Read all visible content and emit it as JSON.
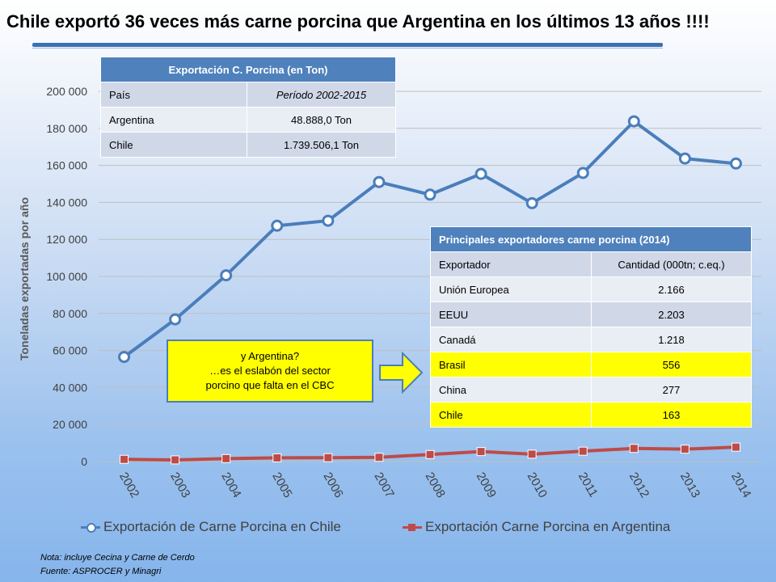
{
  "title": "Chile exportó 36 veces más carne porcina que Argentina en los últimos 13 años !!!!",
  "colors": {
    "chile": "#4a7ebb",
    "argentina": "#be4b48",
    "table_header": "#4f81bd",
    "highlight": "#ffff00"
  },
  "chart_data": {
    "type": "line",
    "title": "",
    "xlabel": "",
    "ylabel": "Toneladas exportadas por año",
    "categories": [
      "2002",
      "2003",
      "2004",
      "2005",
      "2006",
      "2007",
      "2008",
      "2009",
      "2010",
      "2011",
      "2012",
      "2013",
      "2014"
    ],
    "ylim": [
      0,
      200000
    ],
    "yticks": [
      0,
      20000,
      40000,
      60000,
      80000,
      100000,
      120000,
      140000,
      160000,
      180000,
      200000
    ],
    "ytick_labels": [
      "0",
      "20 000",
      "40 000",
      "60 000",
      "80 000",
      "100 000",
      "120 000",
      "140 000",
      "160 000",
      "180 000",
      "200 000"
    ],
    "grid": true,
    "legend_position": "bottom",
    "series": [
      {
        "name": "Exportación de Carne Porcina en Chile",
        "marker": "circle",
        "values": [
          56500,
          76800,
          100600,
          127400,
          130100,
          151000,
          144200,
          155400,
          139600,
          155900,
          183800,
          163700,
          161000
        ]
      },
      {
        "name": "Exportación Carne Porcina en Argentina",
        "marker": "square",
        "values": [
          1200,
          900,
          1600,
          2000,
          2100,
          2300,
          3800,
          5400,
          4000,
          5600,
          7100,
          6700,
          7800
        ]
      }
    ]
  },
  "table1": {
    "title": "Exportación C. Porcina    (en Ton)",
    "header": [
      "País",
      "Período 2002-2015"
    ],
    "rows": [
      [
        "Argentina",
        "48.888,0 Ton"
      ],
      [
        "Chile",
        "1.739.506,1 Ton"
      ]
    ]
  },
  "table2": {
    "title": "Principales exportadores carne porcina (2014)",
    "header": [
      "Exportador",
      "Cantidad (000tn; c.eq.)"
    ],
    "rows": [
      [
        "Unión Europea",
        "2.166"
      ],
      [
        "EEUU",
        "2.203"
      ],
      [
        "Canadá",
        "1.218"
      ],
      [
        "Brasil",
        "556"
      ],
      [
        "China",
        "277"
      ],
      [
        "Chile",
        "163"
      ]
    ],
    "highlighted_rows": [
      "Brasil",
      "Chile"
    ]
  },
  "callout": {
    "line1": "y Argentina?",
    "line2": "…es el eslabón del sector",
    "line3": "porcino que falta en el CBC"
  },
  "notes": {
    "nota": "Nota: incluye Cecina y Carne de Cerdo",
    "fuente": "Fuente: ASPROCER y Minagri"
  }
}
